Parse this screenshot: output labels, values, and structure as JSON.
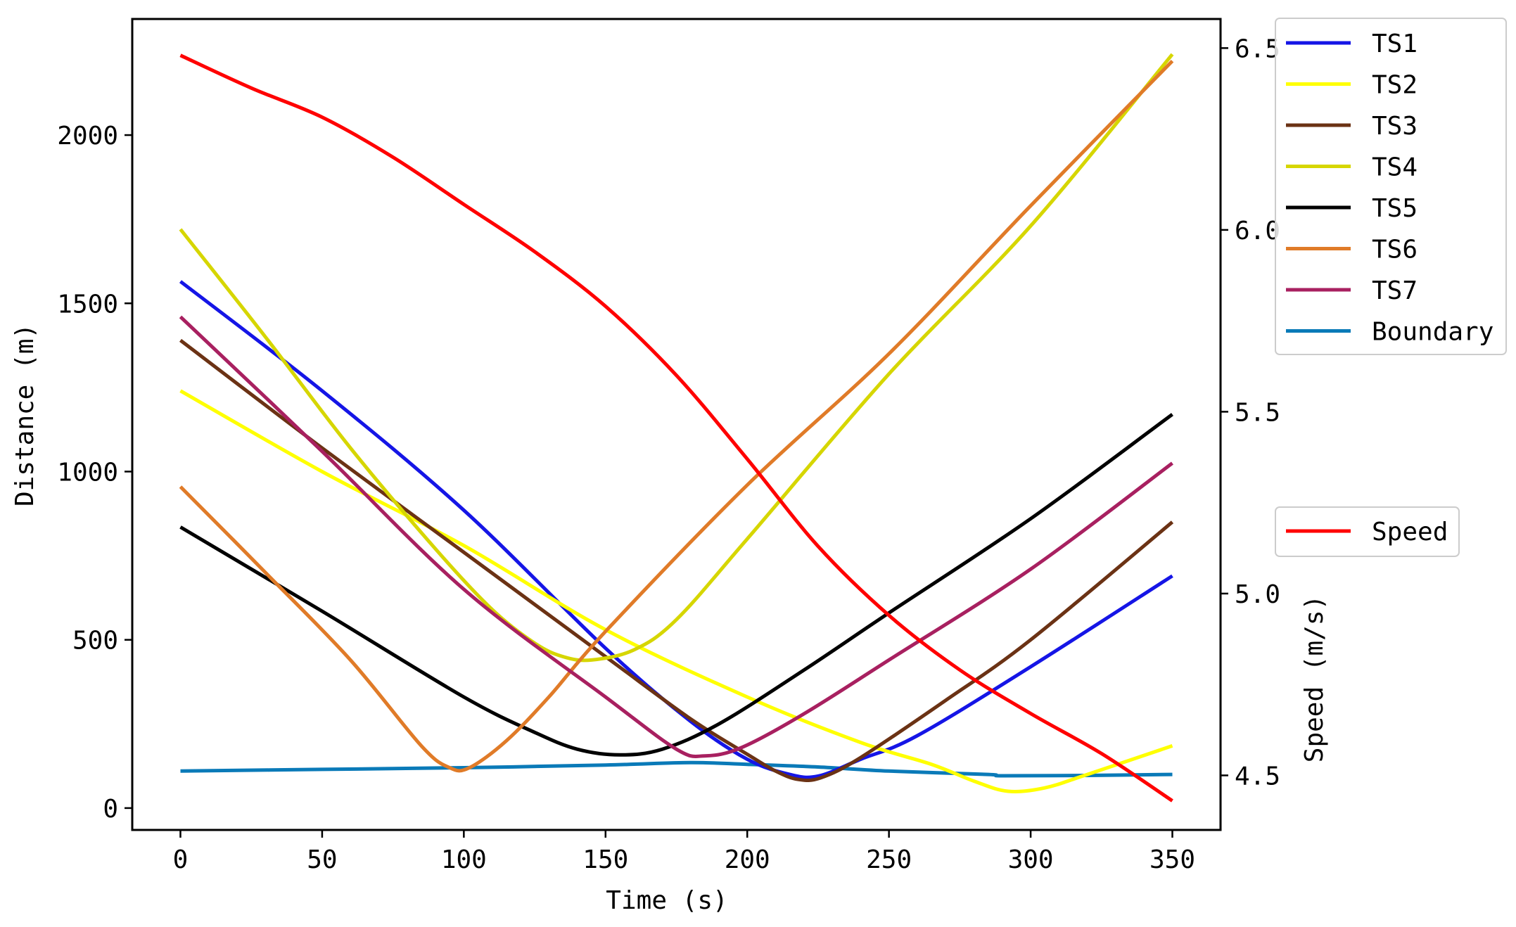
{
  "chart_data": {
    "type": "line",
    "xlabel": "Time (s)",
    "ylabel_left": "Distance (m)",
    "ylabel_right": "Speed (m/s)",
    "xlim": [
      -17,
      367
    ],
    "ylim_left": [
      -65,
      2345
    ],
    "ylim_right": [
      4.35,
      6.58
    ],
    "x_ticks": [
      0,
      50,
      100,
      150,
      200,
      250,
      300,
      350
    ],
    "x_tick_labels": [
      "0",
      "50",
      "100",
      "150",
      "200",
      "250",
      "300",
      "350"
    ],
    "y_left_ticks": [
      0,
      500,
      1000,
      1500,
      2000
    ],
    "y_left_tick_labels": [
      "0",
      "500",
      "1000",
      "1500",
      "2000"
    ],
    "y_right_ticks": [
      4.5,
      5.0,
      5.5,
      6.0,
      6.5
    ],
    "y_right_tick_labels": [
      "4.5",
      "5.0",
      "5.5",
      "6.0",
      "6.5"
    ],
    "grid": false,
    "legend_left_axis_placement": "upper-right outside",
    "legend_right_axis_placement": "right outside",
    "series_left": [
      {
        "name": "TS1",
        "color": "#1515e6",
        "points": [
          [
            0,
            1565
          ],
          [
            50,
            1240
          ],
          [
            100,
            885
          ],
          [
            150,
            475
          ],
          [
            180,
            258
          ],
          [
            200,
            145
          ],
          [
            215,
            100
          ],
          [
            225,
            95
          ],
          [
            240,
            145
          ],
          [
            260,
            215
          ],
          [
            300,
            420
          ],
          [
            350,
            690
          ]
        ]
      },
      {
        "name": "TS2",
        "color": "#ffff00",
        "points": [
          [
            0,
            1240
          ],
          [
            50,
            1000
          ],
          [
            100,
            780
          ],
          [
            150,
            530
          ],
          [
            200,
            330
          ],
          [
            240,
            195
          ],
          [
            265,
            130
          ],
          [
            280,
            80
          ],
          [
            292,
            50
          ],
          [
            305,
            60
          ],
          [
            320,
            100
          ],
          [
            350,
            185
          ]
        ]
      },
      {
        "name": "TS3",
        "color": "#6b3214",
        "points": [
          [
            0,
            1390
          ],
          [
            50,
            1070
          ],
          [
            100,
            760
          ],
          [
            150,
            450
          ],
          [
            180,
            265
          ],
          [
            200,
            160
          ],
          [
            210,
            110
          ],
          [
            218,
            85
          ],
          [
            226,
            90
          ],
          [
            240,
            150
          ],
          [
            270,
            320
          ],
          [
            300,
            500
          ],
          [
            350,
            850
          ]
        ]
      },
      {
        "name": "TS4",
        "color": "#d6d600",
        "points": [
          [
            0,
            1720
          ],
          [
            30,
            1400
          ],
          [
            60,
            1070
          ],
          [
            90,
            770
          ],
          [
            110,
            590
          ],
          [
            125,
            490
          ],
          [
            135,
            450
          ],
          [
            145,
            440
          ],
          [
            160,
            470
          ],
          [
            175,
            560
          ],
          [
            200,
            800
          ],
          [
            250,
            1290
          ],
          [
            300,
            1730
          ],
          [
            350,
            2240
          ]
        ]
      },
      {
        "name": "TS5",
        "color": "#000000",
        "points": [
          [
            0,
            835
          ],
          [
            50,
            585
          ],
          [
            100,
            330
          ],
          [
            125,
            225
          ],
          [
            140,
            175
          ],
          [
            155,
            158
          ],
          [
            170,
            175
          ],
          [
            190,
            250
          ],
          [
            220,
            410
          ],
          [
            250,
            580
          ],
          [
            300,
            860
          ],
          [
            350,
            1170
          ]
        ]
      },
      {
        "name": "TS6",
        "color": "#e07b28",
        "points": [
          [
            0,
            955
          ],
          [
            30,
            700
          ],
          [
            60,
            440
          ],
          [
            85,
            185
          ],
          [
            95,
            120
          ],
          [
            102,
            120
          ],
          [
            115,
            200
          ],
          [
            130,
            330
          ],
          [
            150,
            525
          ],
          [
            200,
            960
          ],
          [
            250,
            1350
          ],
          [
            300,
            1790
          ],
          [
            350,
            2220
          ]
        ]
      },
      {
        "name": "TS7",
        "color": "#a82060",
        "points": [
          [
            0,
            1460
          ],
          [
            50,
            1060
          ],
          [
            100,
            650
          ],
          [
            150,
            330
          ],
          [
            175,
            175
          ],
          [
            185,
            155
          ],
          [
            198,
            180
          ],
          [
            220,
            280
          ],
          [
            250,
            440
          ],
          [
            300,
            710
          ],
          [
            350,
            1025
          ]
        ]
      },
      {
        "name": "Boundary",
        "color": "#0a7ab8",
        "points": [
          [
            0,
            110
          ],
          [
            50,
            115
          ],
          [
            100,
            120
          ],
          [
            150,
            128
          ],
          [
            180,
            135
          ],
          [
            200,
            130
          ],
          [
            225,
            122
          ],
          [
            250,
            110
          ],
          [
            285,
            100
          ],
          [
            290,
            96
          ],
          [
            320,
            97
          ],
          [
            350,
            100
          ]
        ]
      }
    ],
    "series_right": [
      {
        "name": "Speed",
        "color": "#ff0000",
        "points": [
          [
            0,
            6.48
          ],
          [
            25,
            6.39
          ],
          [
            50,
            6.31
          ],
          [
            75,
            6.2
          ],
          [
            100,
            6.07
          ],
          [
            125,
            5.94
          ],
          [
            150,
            5.79
          ],
          [
            175,
            5.6
          ],
          [
            200,
            5.37
          ],
          [
            225,
            5.13
          ],
          [
            250,
            4.94
          ],
          [
            275,
            4.79
          ],
          [
            300,
            4.67
          ],
          [
            325,
            4.56
          ],
          [
            350,
            4.43
          ]
        ]
      }
    ]
  }
}
